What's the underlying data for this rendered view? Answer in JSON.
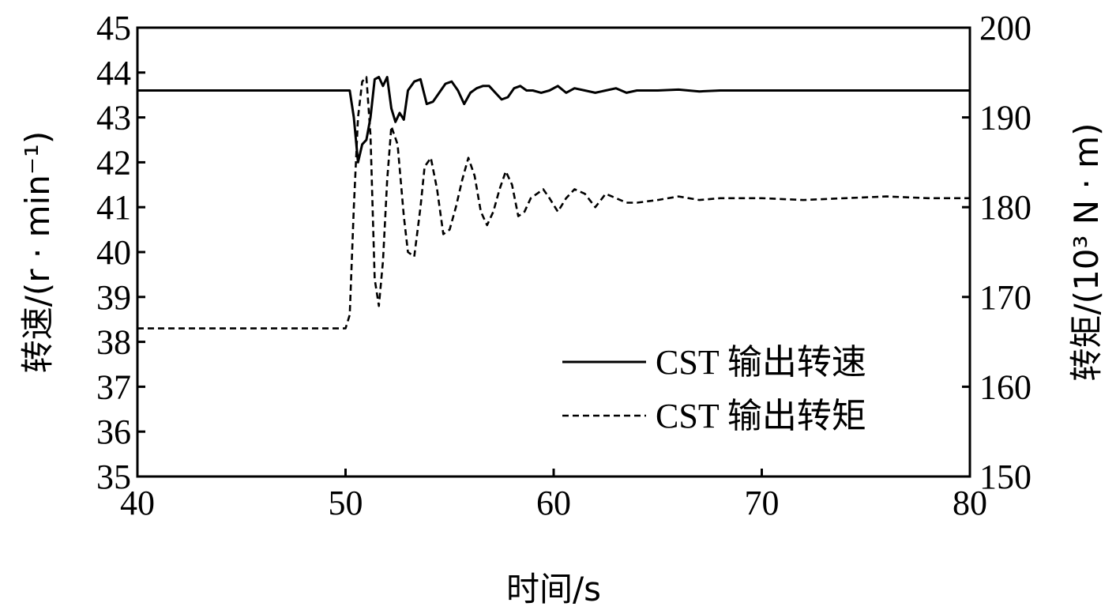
{
  "chart_data": {
    "type": "line",
    "xlabel": "时间/s",
    "ylabel_left": "转速/(r · min⁻¹)",
    "ylabel_right": "转矩/(10³ N · m)",
    "xlim": [
      40,
      80
    ],
    "ylim_left": [
      35,
      45
    ],
    "ylim_right": [
      150,
      200
    ],
    "x_ticks": [
      "40",
      "50",
      "60",
      "70",
      "80"
    ],
    "y_ticks_left": [
      "35",
      "36",
      "37",
      "38",
      "39",
      "40",
      "41",
      "42",
      "43",
      "44",
      "45"
    ],
    "y_ticks_right": [
      "150",
      "160",
      "170",
      "180",
      "190",
      "200"
    ],
    "grid": false,
    "legend_position": "right",
    "series": [
      {
        "name": "CST 输出转速",
        "axis": "left",
        "style": "solid",
        "x": [
          40,
          44,
          48,
          50,
          50.2,
          50.4,
          50.6,
          50.8,
          51.0,
          51.2,
          51.4,
          51.6,
          51.8,
          52.0,
          52.2,
          52.4,
          52.6,
          52.8,
          53.0,
          53.3,
          53.6,
          53.9,
          54.2,
          54.5,
          54.8,
          55.1,
          55.4,
          55.7,
          56.0,
          56.3,
          56.6,
          56.9,
          57.2,
          57.5,
          57.8,
          58.1,
          58.4,
          58.7,
          59.0,
          59.4,
          59.8,
          60.2,
          60.6,
          61.0,
          61.5,
          62.0,
          62.5,
          63.0,
          63.5,
          64.0,
          65.0,
          66.0,
          67.0,
          68.0,
          70.0,
          72.0,
          75.0,
          78.0,
          80.0
        ],
        "y": [
          43.6,
          43.6,
          43.6,
          43.6,
          43.6,
          43.0,
          42.0,
          42.4,
          42.5,
          43.0,
          43.85,
          43.9,
          43.7,
          43.9,
          43.2,
          42.9,
          43.1,
          42.95,
          43.6,
          43.8,
          43.85,
          43.3,
          43.35,
          43.55,
          43.75,
          43.8,
          43.6,
          43.3,
          43.55,
          43.65,
          43.7,
          43.7,
          43.55,
          43.4,
          43.45,
          43.65,
          43.7,
          43.6,
          43.6,
          43.55,
          43.6,
          43.7,
          43.55,
          43.65,
          43.6,
          43.55,
          43.6,
          43.65,
          43.55,
          43.6,
          43.6,
          43.62,
          43.58,
          43.6,
          43.6,
          43.6,
          43.6,
          43.6,
          43.6
        ]
      },
      {
        "name": "CST 输出转矩",
        "axis": "right",
        "style": "dashed",
        "x": [
          40,
          44,
          48,
          50,
          50.2,
          50.4,
          50.6,
          50.8,
          51.0,
          51.2,
          51.4,
          51.6,
          51.8,
          52.0,
          52.2,
          52.5,
          52.8,
          53.0,
          53.3,
          53.6,
          53.8,
          54.1,
          54.4,
          54.7,
          55.0,
          55.3,
          55.6,
          55.9,
          56.2,
          56.5,
          56.8,
          57.1,
          57.4,
          57.7,
          58.0,
          58.3,
          58.6,
          58.9,
          59.2,
          59.5,
          59.8,
          60.2,
          60.6,
          61.0,
          61.5,
          62.0,
          62.5,
          63.0,
          63.5,
          64.0,
          65.0,
          66.0,
          67.0,
          68.0,
          70.0,
          72.0,
          74.0,
          76.0,
          78.0,
          80.0
        ],
        "y": [
          166.5,
          166.5,
          166.5,
          166.5,
          168.0,
          180.0,
          190.0,
          194.0,
          194.5,
          188.0,
          172.0,
          169.0,
          174.0,
          183.0,
          189.0,
          187.0,
          179.0,
          175.0,
          174.5,
          180.0,
          184.5,
          185.5,
          182.0,
          177.0,
          177.5,
          180.0,
          183.0,
          185.5,
          183.5,
          179.5,
          178.0,
          179.5,
          182.0,
          184.0,
          182.5,
          179.0,
          179.5,
          181.0,
          181.5,
          182.0,
          181.0,
          179.5,
          181.0,
          182.0,
          181.5,
          180.0,
          181.5,
          181.0,
          180.5,
          180.5,
          180.8,
          181.2,
          180.8,
          181.0,
          181.0,
          180.8,
          181.0,
          181.2,
          181.0,
          181.0
        ]
      }
    ]
  }
}
